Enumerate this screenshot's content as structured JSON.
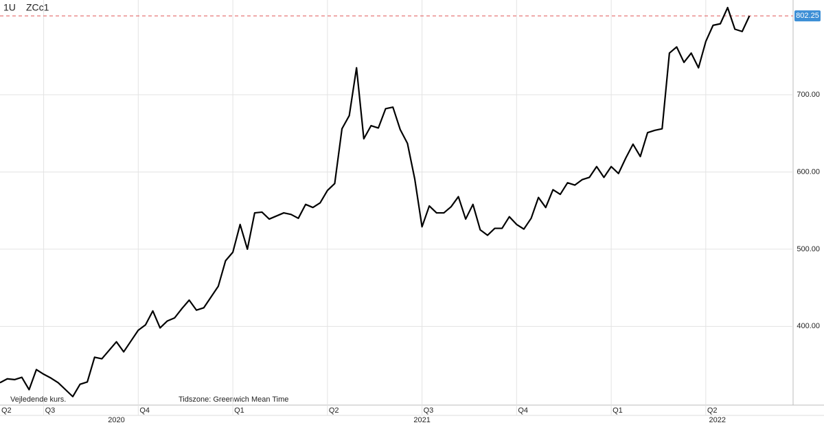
{
  "chart_data": {
    "type": "line",
    "header": [
      "1U",
      "ZCc1"
    ],
    "footer": [
      "Vejledende kurs.",
      "Tidszone: Greenwich Mean Time"
    ],
    "series": [
      {
        "color": "#000000",
        "values": [
          327,
          332,
          331,
          334,
          318,
          344,
          338,
          333,
          327,
          318,
          309,
          325,
          328,
          360,
          358,
          369,
          380,
          367,
          381,
          395,
          402,
          420,
          398,
          407,
          411,
          423,
          434,
          421,
          424,
          438,
          452,
          485,
          496,
          532,
          500,
          547,
          548,
          539,
          543,
          547,
          545,
          540,
          558,
          554,
          560,
          576,
          585,
          656,
          673,
          735,
          643,
          660,
          657,
          682,
          684,
          655,
          637,
          591,
          529,
          556,
          547,
          547,
          555,
          568,
          539,
          558,
          525,
          518,
          527,
          527,
          542,
          532,
          526,
          540,
          567,
          554,
          577,
          571,
          586,
          583,
          590,
          593,
          607,
          593,
          607,
          598,
          618,
          636,
          620,
          651,
          654,
          656,
          754,
          762,
          742,
          754,
          735,
          769,
          790,
          792,
          813,
          785,
          782,
          802.25
        ]
      }
    ],
    "xlim": [
      0,
      109
    ],
    "xticks": [
      {
        "value": -7,
        "label": "Q2"
      },
      {
        "value": 6,
        "label": "Q3"
      },
      {
        "value": 19,
        "label": "Q4"
      },
      {
        "value": 32,
        "label": "Q1"
      },
      {
        "value": 45,
        "label": "Q2"
      },
      {
        "value": 58,
        "label": "Q3"
      },
      {
        "value": 71,
        "label": "Q4"
      },
      {
        "value": 84,
        "label": "Q1"
      },
      {
        "value": 97,
        "label": "Q2"
      }
    ],
    "year_labels": [
      {
        "value": 16,
        "label": "2020"
      },
      {
        "value": 58,
        "label": "2021"
      },
      {
        "value": 98.6,
        "label": "2022"
      }
    ],
    "ylim": [
      298,
      822.8
    ],
    "yticks": [
      {
        "value": 400,
        "label": "400.00"
      },
      {
        "value": 500,
        "label": "500.00"
      },
      {
        "value": 600,
        "label": "600.00"
      },
      {
        "value": 700,
        "label": "700.00"
      }
    ],
    "reference_line": {
      "value": 802.25,
      "label": "802.25",
      "color": "#e05555"
    },
    "grid": true
  }
}
